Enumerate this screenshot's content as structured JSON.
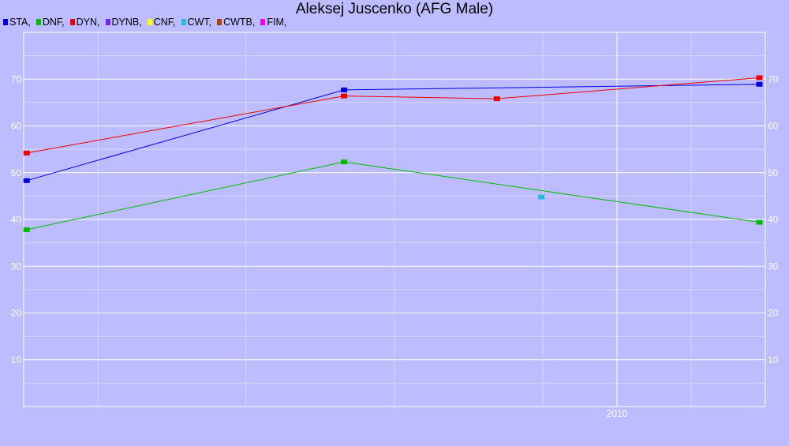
{
  "chart_data": {
    "type": "line",
    "title": "Aleksej Juscenko (AFG Male)",
    "xlabel": "",
    "ylabel": "",
    "x_ticks": [
      2010
    ],
    "y_ticks": [
      10,
      20,
      30,
      40,
      50,
      60,
      70
    ],
    "xlim": [
      2006.0,
      2011.0
    ],
    "ylim": [
      0,
      80
    ],
    "grid": true,
    "legend_position": "top-left",
    "legend": [
      {
        "label": "STA,",
        "color": "#0000dd"
      },
      {
        "label": "DNF,",
        "color": "#00bb00"
      },
      {
        "label": "DYN,",
        "color": "#ee0000"
      },
      {
        "label": "DYNB,",
        "color": "#7722ee"
      },
      {
        "label": "CNF,",
        "color": "#ffff00"
      },
      {
        "label": "CWT,",
        "color": "#22bbdd"
      },
      {
        "label": "CWTB,",
        "color": "#aa4400"
      },
      {
        "label": "FIM,",
        "color": "#ee00ee"
      }
    ],
    "series": [
      {
        "name": "STA",
        "color": "#0000dd",
        "x": [
          2006.02,
          2008.16,
          2010.96
        ],
        "y": [
          48.3,
          67.7,
          68.9
        ]
      },
      {
        "name": "DYN",
        "color": "#ee0000",
        "x": [
          2006.02,
          2008.16,
          2009.19,
          2010.96
        ],
        "y": [
          54.2,
          66.4,
          65.8,
          70.3
        ]
      },
      {
        "name": "DNF",
        "color": "#00bb00",
        "x": [
          2006.02,
          2008.16,
          2010.96
        ],
        "y": [
          37.8,
          52.3,
          39.4
        ]
      },
      {
        "name": "CWT",
        "color": "#22bbdd",
        "x": [
          2009.49
        ],
        "y": [
          44.8
        ]
      }
    ]
  }
}
